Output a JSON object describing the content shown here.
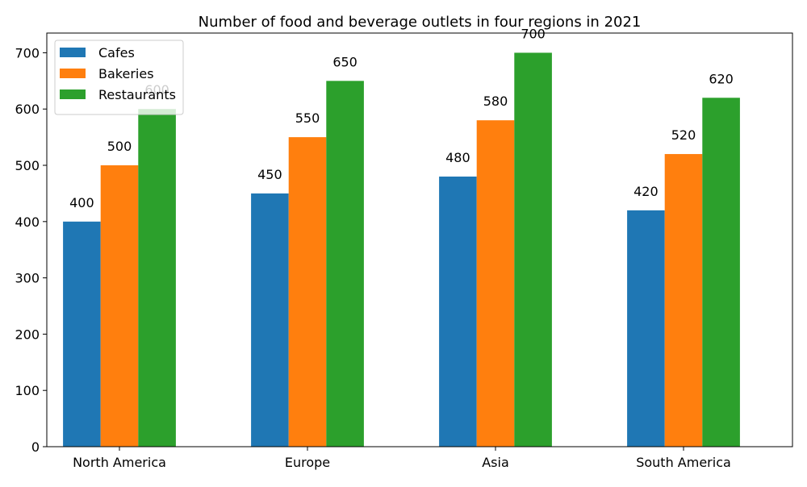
{
  "chart_data": {
    "type": "bar",
    "title": "Number of food and beverage outlets in four regions in 2021",
    "xlabel": "",
    "ylabel": "",
    "categories": [
      "North America",
      "Europe",
      "Asia",
      "South America"
    ],
    "series": [
      {
        "name": "Cafes",
        "values": [
          400,
          450,
          480,
          420
        ],
        "color": "#1f77b4"
      },
      {
        "name": "Bakeries",
        "values": [
          500,
          550,
          580,
          520
        ],
        "color": "#ff7f0e"
      },
      {
        "name": "Restaurants",
        "values": [
          600,
          650,
          700,
          620
        ],
        "color": "#2ca02c"
      }
    ],
    "ylim": [
      0,
      735
    ],
    "yticks": [
      0,
      100,
      200,
      300,
      400,
      500,
      600,
      700
    ],
    "grid": false,
    "legend_position": "top-left",
    "data_labels": true
  }
}
